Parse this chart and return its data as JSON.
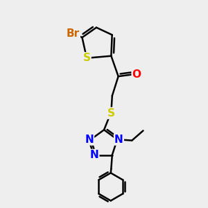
{
  "background_color": "#eeeeee",
  "bond_color": "#000000",
  "bond_width": 1.8,
  "atom_colors": {
    "Br": "#cc6600",
    "S": "#cccc00",
    "O": "#ff0000",
    "N": "#0000ff",
    "C": "#000000"
  },
  "font_size_atom": 11,
  "figsize": [
    3.0,
    3.0
  ],
  "dpi": 100
}
